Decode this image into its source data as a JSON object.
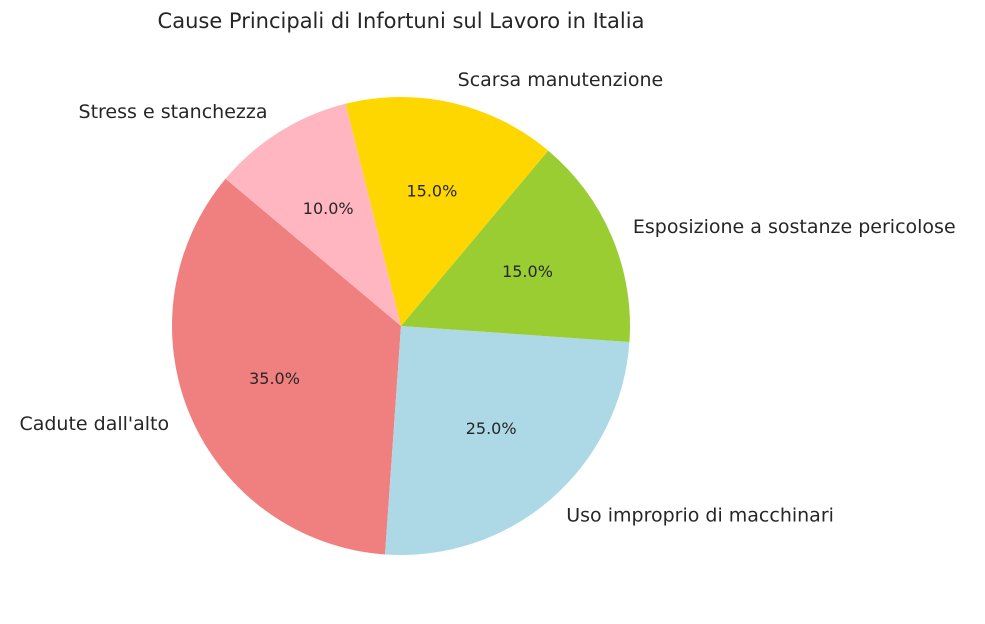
{
  "chart_data": {
    "type": "pie",
    "title": "Cause Principali di Infortuni sul Lavoro in Italia",
    "categories": [
      "Cadute dall'alto",
      "Uso improprio di macchinari",
      "Esposizione a sostanze pericolose",
      "Scarsa manutenzione",
      "Stress e stanchezza"
    ],
    "values": [
      35,
      25,
      15,
      15,
      10
    ],
    "value_labels": [
      "35.0%",
      "25.0%",
      "15.0%",
      "15.0%",
      "10.0%"
    ],
    "colors": [
      "#f08080",
      "#add8e6",
      "#9acd32",
      "#ffd700",
      "#ffb6c1"
    ],
    "start_angle": 140
  }
}
